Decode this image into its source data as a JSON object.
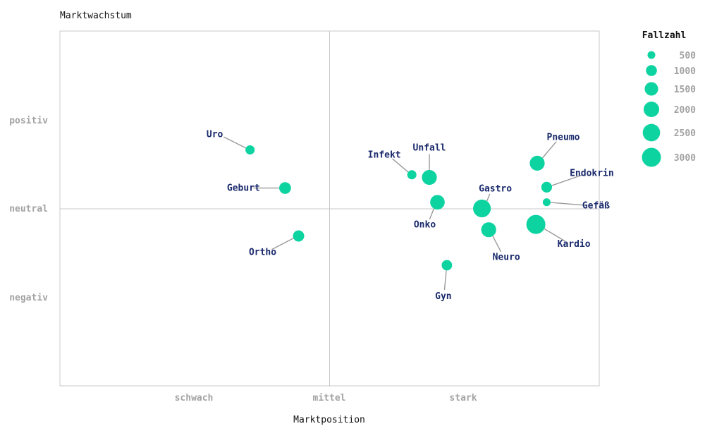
{
  "chart_data": {
    "type": "scatter",
    "title": "",
    "xlabel": "Marktposition",
    "ylabel": "Marktwachstum",
    "x_ticks": [
      "schwach",
      "mittel",
      "stark"
    ],
    "y_ticks": [
      "positiv",
      "neutral",
      "negativ"
    ],
    "xlim": [
      0,
      4
    ],
    "ylim": [
      -2,
      2
    ],
    "grid": false,
    "reference_lines": {
      "x": 2,
      "y": 0
    },
    "legend": {
      "title": "Fallzahl",
      "placement": "right",
      "sizes": [
        500,
        1000,
        1500,
        2000,
        2500,
        3000
      ]
    },
    "point_color": "#0dd3a1",
    "label_color": "#1a2a6c",
    "leader_color": "#9a9a9a",
    "points": [
      {
        "label": "Uro",
        "x": 1.41,
        "y": 0.66,
        "size": 700
      },
      {
        "label": "Geburt",
        "x": 1.67,
        "y": 0.23,
        "size": 1150
      },
      {
        "label": "Ortho",
        "x": 1.77,
        "y": -0.31,
        "size": 1050
      },
      {
        "label": "Infekt",
        "x": 2.61,
        "y": 0.38,
        "size": 700
      },
      {
        "label": "Unfall",
        "x": 2.74,
        "y": 0.35,
        "size": 1850
      },
      {
        "label": "Onko",
        "x": 2.8,
        "y": 0.07,
        "size": 1750
      },
      {
        "label": "Gyn",
        "x": 2.87,
        "y": -0.64,
        "size": 900
      },
      {
        "label": "Gastro",
        "x": 3.13,
        "y": 0.0,
        "size": 2600
      },
      {
        "label": "Neuro",
        "x": 3.18,
        "y": -0.24,
        "size": 1850
      },
      {
        "label": "Pneumo",
        "x": 3.54,
        "y": 0.51,
        "size": 1850
      },
      {
        "label": "Kardio",
        "x": 3.53,
        "y": -0.18,
        "size": 3000
      },
      {
        "label": "Endokrin",
        "x": 3.61,
        "y": 0.24,
        "size": 950
      },
      {
        "label": "Gefäß",
        "x": 3.61,
        "y": 0.07,
        "size": 500
      }
    ]
  }
}
